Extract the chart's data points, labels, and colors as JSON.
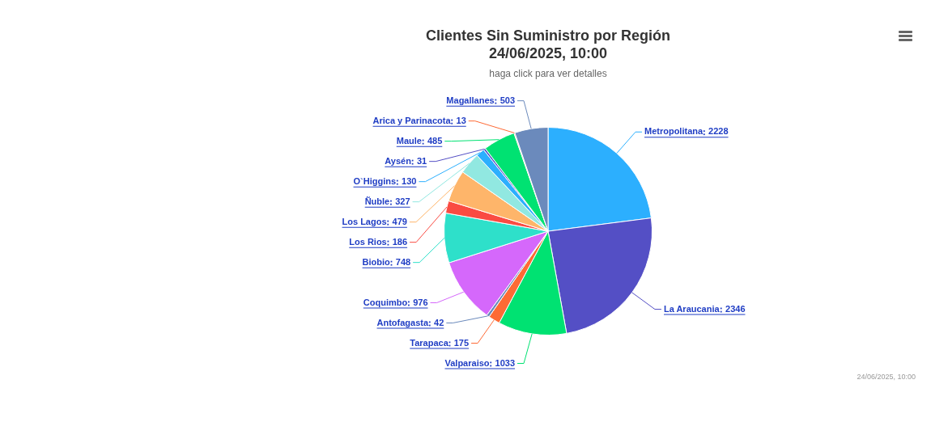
{
  "chart_data": {
    "type": "pie",
    "title": "Clientes Sin Suministro por Región\n24/06/2025, 10:00",
    "subtitle": "haga click para ver detalles",
    "categories": [
      "Metropolitana",
      "La Araucania",
      "Valparaiso",
      "Tarapaca",
      "Antofagasta",
      "Coquimbo",
      "Biobio",
      "Los Rios",
      "Los Lagos",
      "Ñuble",
      "O`Higgins",
      "Aysén",
      "Maule",
      "Arica y Parinacota",
      "Magallanes"
    ],
    "values": [
      2228,
      2346,
      1033,
      175,
      42,
      976,
      748,
      186,
      479,
      327,
      130,
      31,
      485,
      13,
      503
    ],
    "colors": [
      "#2caffe",
      "#544fc5",
      "#00e272",
      "#fe6a35",
      "#6b8abc",
      "#d568fb",
      "#2ee0ca",
      "#fa4b42",
      "#feb56a",
      "#91e8e1",
      "#2caffe",
      "#544fc5",
      "#00e272",
      "#fe6a35",
      "#6b8abc"
    ],
    "data_labels": true,
    "legend": false,
    "annotations": [
      "24/06/2025, 10:00"
    ]
  }
}
